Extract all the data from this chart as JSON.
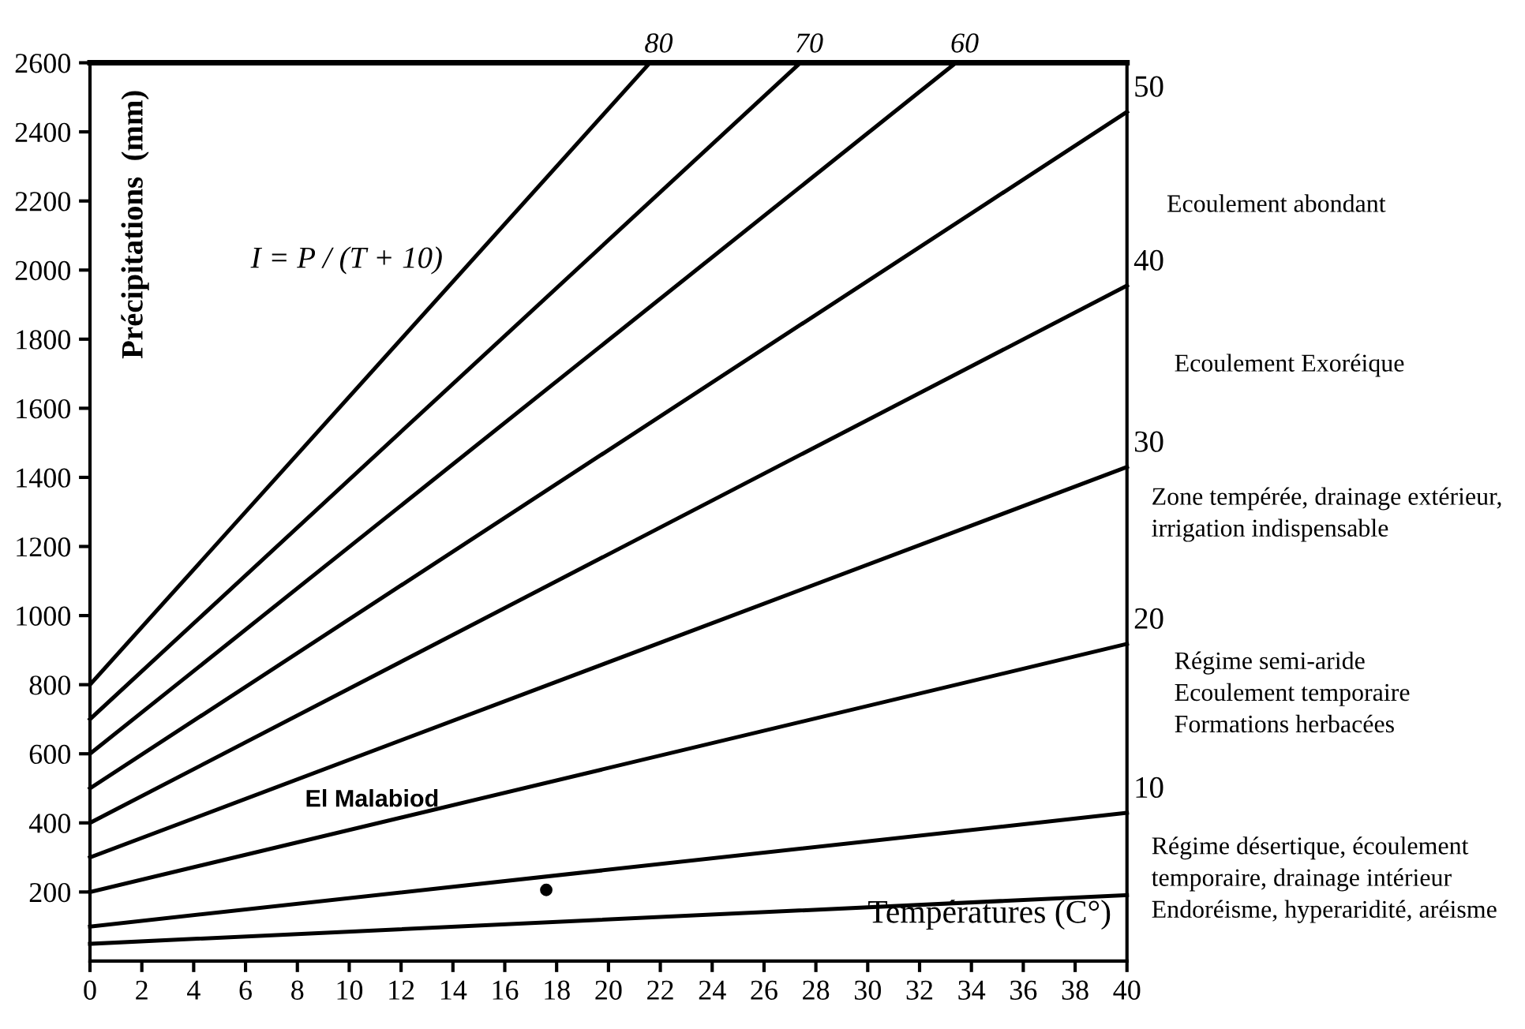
{
  "chart_data": {
    "type": "line",
    "xlabel": "Températures (C°)",
    "ylabel": "Précipitations  (mm)",
    "series": [
      {
        "color": "#000000",
        "x": [
          0,
          40
        ],
        "values": [
          50,
          191
        ]
      },
      {
        "color": "#000000",
        "x": [
          0,
          40
        ],
        "values": [
          100,
          429
        ]
      },
      {
        "color": "#000000",
        "x": [
          0,
          40
        ],
        "values": [
          200,
          918
        ]
      },
      {
        "color": "#000000",
        "x": [
          0,
          40
        ],
        "values": [
          300,
          1430
        ]
      },
      {
        "color": "#000000",
        "x": [
          0,
          40
        ],
        "values": [
          400,
          1955
        ]
      },
      {
        "color": "#000000",
        "x": [
          0,
          40
        ],
        "values": [
          500,
          2458
        ]
      },
      {
        "color": "#000000",
        "x": [
          0,
          33.4
        ],
        "values": [
          600,
          2600
        ]
      },
      {
        "color": "#000000",
        "x": [
          0,
          27.4
        ],
        "values": [
          700,
          2600
        ]
      },
      {
        "color": "#000000",
        "x": [
          0,
          21.6
        ],
        "values": [
          800,
          2600
        ]
      },
      {
        "type": "scatter",
        "name": "El Malabiod",
        "color": "#000000",
        "marker": "circle",
        "x": [
          17.6
        ],
        "values": [
          206
        ]
      }
    ],
    "xlim": [
      0,
      40
    ],
    "ylim": [
      0,
      2600
    ],
    "xticks": [
      0,
      2,
      4,
      6,
      8,
      10,
      12,
      14,
      16,
      18,
      20,
      22,
      24,
      26,
      28,
      30,
      32,
      34,
      36,
      38,
      40
    ],
    "yticks": [
      200,
      400,
      600,
      800,
      1000,
      1200,
      1400,
      1600,
      1800,
      2000,
      2200,
      2400,
      2600
    ],
    "grid": false,
    "legend": false,
    "line_style": "solid",
    "annotations": [
      "I = P / (T + 10)",
      {
        "text": "10",
        "x": 40,
        "y": 429
      },
      {
        "text": "20",
        "x": 40,
        "y": 918
      },
      {
        "text": "30",
        "x": 40,
        "y": 1430
      },
      {
        "text": "40",
        "x": 40,
        "y": 1955
      },
      {
        "text": "50",
        "x": 40,
        "y": 2458
      },
      {
        "text": "60",
        "x": 33.4,
        "y": 2600
      },
      {
        "text": "70",
        "x": 27.4,
        "y": 2600
      },
      {
        "text": "80",
        "x": 21.6,
        "y": 2600
      },
      "Ecoulement abondant",
      "Ecoulement Exoréique",
      "Zone tempérée, drainage extérieur,\nirrigation indispensable",
      "Régime semi-aride\nEcoulement temporaire\nFormations herbacées",
      "Régime désertique, écoulement\ntemporaire, drainage intérieur\nEndoréisme, hyperaridité, aréisme"
    ]
  }
}
